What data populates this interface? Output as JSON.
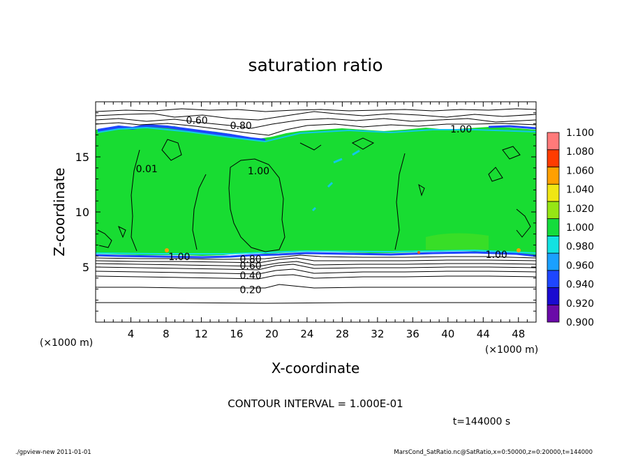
{
  "chart_data": {
    "type": "heatmap",
    "title": "saturation ratio",
    "xlabel": "X-coordinate",
    "ylabel": "Z-coordinate",
    "x_unit": "(×1000 m)",
    "y_unit": "(×1000 m)",
    "xlim": [
      0,
      50
    ],
    "ylim": [
      0,
      20
    ],
    "x_ticks": [
      "4",
      "8",
      "12",
      "16",
      "20",
      "24",
      "28",
      "32",
      "36",
      "40",
      "44",
      "48"
    ],
    "y_ticks": [
      "5",
      "10",
      "15"
    ],
    "colorbar": {
      "labels": [
        "0.900",
        "0.920",
        "0.940",
        "0.960",
        "0.980",
        "1.000",
        "1.020",
        "1.040",
        "1.060",
        "1.080",
        "1.100"
      ],
      "colors": [
        "#6a0aa8",
        "#1a0ad0",
        "#1e46ff",
        "#1aa0ff",
        "#12e2e2",
        "#14dc3c",
        "#96e614",
        "#f0e614",
        "#ffa000",
        "#ff3c00",
        "#ff7a7a"
      ]
    },
    "regions": [
      {
        "name": "supersaturated band",
        "value": 1.0,
        "z_range": [
          6,
          17.5
        ]
      },
      {
        "name": "cloud top low band",
        "value": 0.94,
        "z_range": [
          17.2,
          17.8
        ]
      },
      {
        "name": "cloud base low band",
        "value": 0.94,
        "z_range": [
          5.9,
          6.2
        ]
      }
    ],
    "contour_labels": [
      {
        "text": "0.60",
        "x": 11.5,
        "z": 18.4
      },
      {
        "text": "0.80",
        "x": 16.5,
        "z": 17.9
      },
      {
        "text": "1.00",
        "x": 41.5,
        "z": 17.6
      },
      {
        "text": "0.01",
        "x": 5.8,
        "z": 14.0
      },
      {
        "text": "1.00",
        "x": 18.5,
        "z": 13.8
      },
      {
        "text": "1.00",
        "x": 9.5,
        "z": 6.0
      },
      {
        "text": "1.00",
        "x": 45.5,
        "z": 6.2
      },
      {
        "text": "0.80",
        "x": 17.6,
        "z": 5.8
      },
      {
        "text": "0.60",
        "x": 17.6,
        "z": 5.2
      },
      {
        "text": "0.40",
        "x": 17.6,
        "z": 4.3
      },
      {
        "text": "0.20",
        "x": 17.6,
        "z": 3.0
      }
    ]
  },
  "contour_interval": "CONTOUR INTERVAL = 1.000E-01",
  "time_label": "t=144000 s",
  "footer_left": "./gpview-new  2011-01-01",
  "footer_right": "MarsCond_SatRatio.nc@SatRatio,x=0:50000,z=0:20000,t=144000"
}
